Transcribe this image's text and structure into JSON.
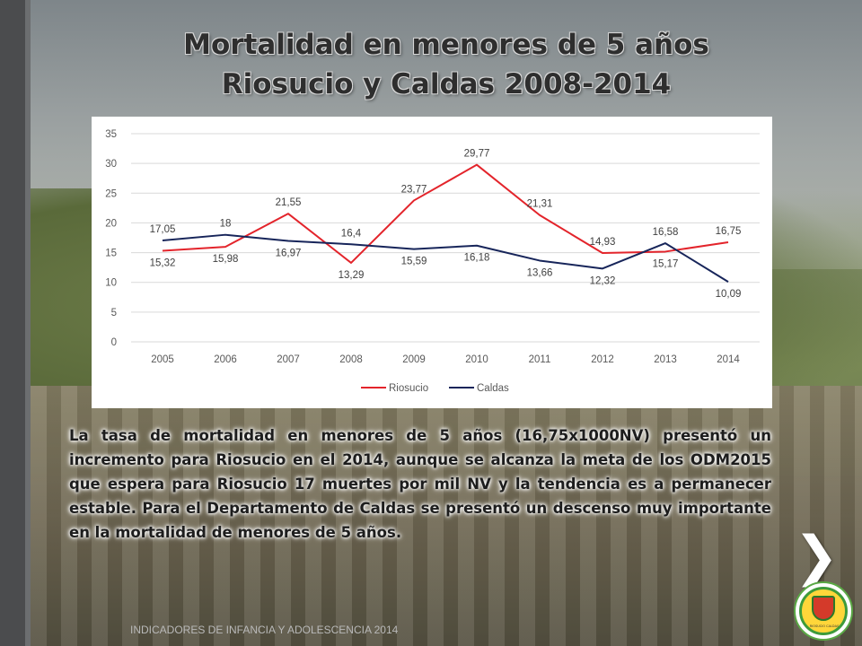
{
  "slide": {
    "title_line1": "Mortalidad en menores de 5 años",
    "title_line2": "Riosucio y Caldas 2008-2014",
    "body": "La tasa de mortalidad en menores de 5 años (16,75x1000NV) presentó un incremento para  Riosucio en el 2014, aunque se alcanza la meta de los ODM2015 que espera para Riosucio 17 muertes por mil NV y la tendencia es a permanecer estable. Para el Departamento de Caldas se presentó un descenso muy importante en la mortalidad de menores de 5 años.",
    "footer": "INDICADORES DE INFANCIA Y ADOLESCENCIA 2014",
    "next_arrow": "❯",
    "logo_text": "RIOSUCIO CALDAS"
  },
  "chart_data": {
    "type": "line",
    "categories": [
      "2005",
      "2006",
      "2007",
      "2008",
      "2009",
      "2010",
      "2011",
      "2012",
      "2013",
      "2014"
    ],
    "ylim": [
      0,
      35
    ],
    "yticks": [
      0,
      5,
      10,
      15,
      20,
      25,
      30,
      35
    ],
    "grid": true,
    "legend_position": "bottom",
    "series": [
      {
        "name": "Riosucio",
        "color": "#e3242b",
        "values": [
          15.32,
          15.98,
          21.55,
          13.29,
          23.77,
          29.77,
          21.31,
          14.93,
          15.17,
          16.75
        ],
        "labels": [
          "15,32",
          "15,98",
          "21,55",
          "13,29",
          "23,77",
          "29,77",
          "21,31",
          "14,93",
          "15,17",
          "16,75"
        ]
      },
      {
        "name": "Caldas",
        "color": "#17255a",
        "values": [
          17.05,
          18,
          16.97,
          16.4,
          15.59,
          16.18,
          13.66,
          12.32,
          16.58,
          10.09
        ],
        "labels": [
          "17,05",
          "18",
          "16,97",
          "16,4",
          "15,59",
          "16,18",
          "13,66",
          "12,32",
          "16,58",
          "10,09"
        ]
      }
    ]
  }
}
